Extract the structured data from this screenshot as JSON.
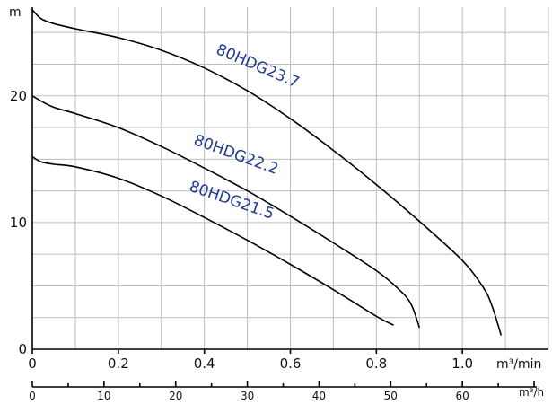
{
  "chart_data": {
    "type": "line",
    "title": "",
    "y_unit": "m",
    "x_unit_primary": "m³/min",
    "x_unit_secondary": "m³/h",
    "ylim": [
      0,
      27
    ],
    "xlim_primary": [
      0,
      1.2
    ],
    "xlim_secondary": [
      0,
      72
    ],
    "grid": true,
    "y_ticks": [
      "0",
      "10",
      "20"
    ],
    "x_ticks_primary": [
      "0",
      "0.2",
      "0.4",
      "0.6",
      "0.8",
      "1.0"
    ],
    "x_ticks_secondary": [
      "0",
      "10",
      "20",
      "30",
      "40",
      "50",
      "60"
    ],
    "series": [
      {
        "name": "80HDG23.7",
        "x": [
          0,
          0.02,
          0.05,
          0.1,
          0.2,
          0.3,
          0.4,
          0.5,
          0.6,
          0.7,
          0.8,
          0.9,
          1.0,
          1.05,
          1.07,
          1.09
        ],
        "y": [
          26.8,
          26.1,
          25.7,
          25.3,
          24.6,
          23.6,
          22.2,
          20.4,
          18.2,
          15.7,
          13.0,
          10.1,
          7.0,
          4.8,
          3.3,
          1.1
        ]
      },
      {
        "name": "80HDG22.2",
        "x": [
          0,
          0.02,
          0.05,
          0.1,
          0.2,
          0.3,
          0.4,
          0.5,
          0.6,
          0.7,
          0.8,
          0.85,
          0.88,
          0.9
        ],
        "y": [
          20.0,
          19.6,
          19.1,
          18.6,
          17.5,
          16.0,
          14.3,
          12.5,
          10.5,
          8.4,
          6.2,
          4.8,
          3.6,
          1.7
        ]
      },
      {
        "name": "80HDG21.5",
        "x": [
          0,
          0.02,
          0.05,
          0.1,
          0.2,
          0.3,
          0.4,
          0.5,
          0.6,
          0.7,
          0.8,
          0.84
        ],
        "y": [
          15.2,
          14.8,
          14.6,
          14.4,
          13.5,
          12.1,
          10.4,
          8.6,
          6.7,
          4.7,
          2.6,
          1.9
        ]
      }
    ]
  }
}
